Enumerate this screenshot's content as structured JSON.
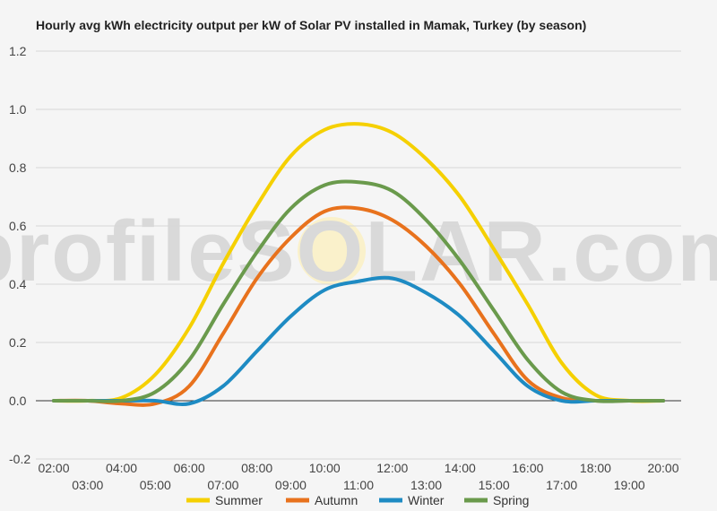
{
  "chart_data": {
    "type": "line",
    "title": "Hourly avg kWh electricity output per kW of Solar PV installed in Mamak, Turkey (by season)",
    "xlabel": "",
    "ylabel": "",
    "ylim": [
      -0.2,
      1.2
    ],
    "yticks": [
      "-0.2",
      "0.0",
      "0.2",
      "0.4",
      "0.6",
      "0.8",
      "1.0",
      "1.2"
    ],
    "x": [
      "02:00",
      "03:00",
      "04:00",
      "05:00",
      "06:00",
      "07:00",
      "08:00",
      "09:00",
      "10:00",
      "11:00",
      "12:00",
      "13:00",
      "14:00",
      "15:00",
      "16:00",
      "17:00",
      "18:00",
      "19:00",
      "20:00"
    ],
    "grid": true,
    "legend": "bottom",
    "watermark_brand": "profileSOLAR.com",
    "series": [
      {
        "name": "Summer",
        "color": "#f5d000",
        "values": [
          0,
          0,
          0.01,
          0.09,
          0.25,
          0.47,
          0.67,
          0.84,
          0.93,
          0.95,
          0.92,
          0.83,
          0.7,
          0.52,
          0.33,
          0.13,
          0.02,
          0,
          0
        ]
      },
      {
        "name": "Autumn",
        "color": "#e8721d",
        "values": [
          0,
          0,
          -0.01,
          -0.01,
          0.05,
          0.23,
          0.42,
          0.56,
          0.65,
          0.66,
          0.62,
          0.53,
          0.4,
          0.23,
          0.07,
          0.01,
          0,
          0,
          0
        ]
      },
      {
        "name": "Winter",
        "color": "#1e8bc3",
        "values": [
          0,
          0,
          0,
          0,
          -0.01,
          0.05,
          0.17,
          0.29,
          0.38,
          0.41,
          0.42,
          0.37,
          0.29,
          0.17,
          0.05,
          0,
          0,
          0,
          0
        ]
      },
      {
        "name": "Spring",
        "color": "#6a9a4c",
        "values": [
          0,
          0,
          0,
          0.03,
          0.14,
          0.33,
          0.51,
          0.66,
          0.74,
          0.75,
          0.72,
          0.62,
          0.48,
          0.31,
          0.14,
          0.03,
          0,
          0,
          0
        ]
      }
    ]
  }
}
